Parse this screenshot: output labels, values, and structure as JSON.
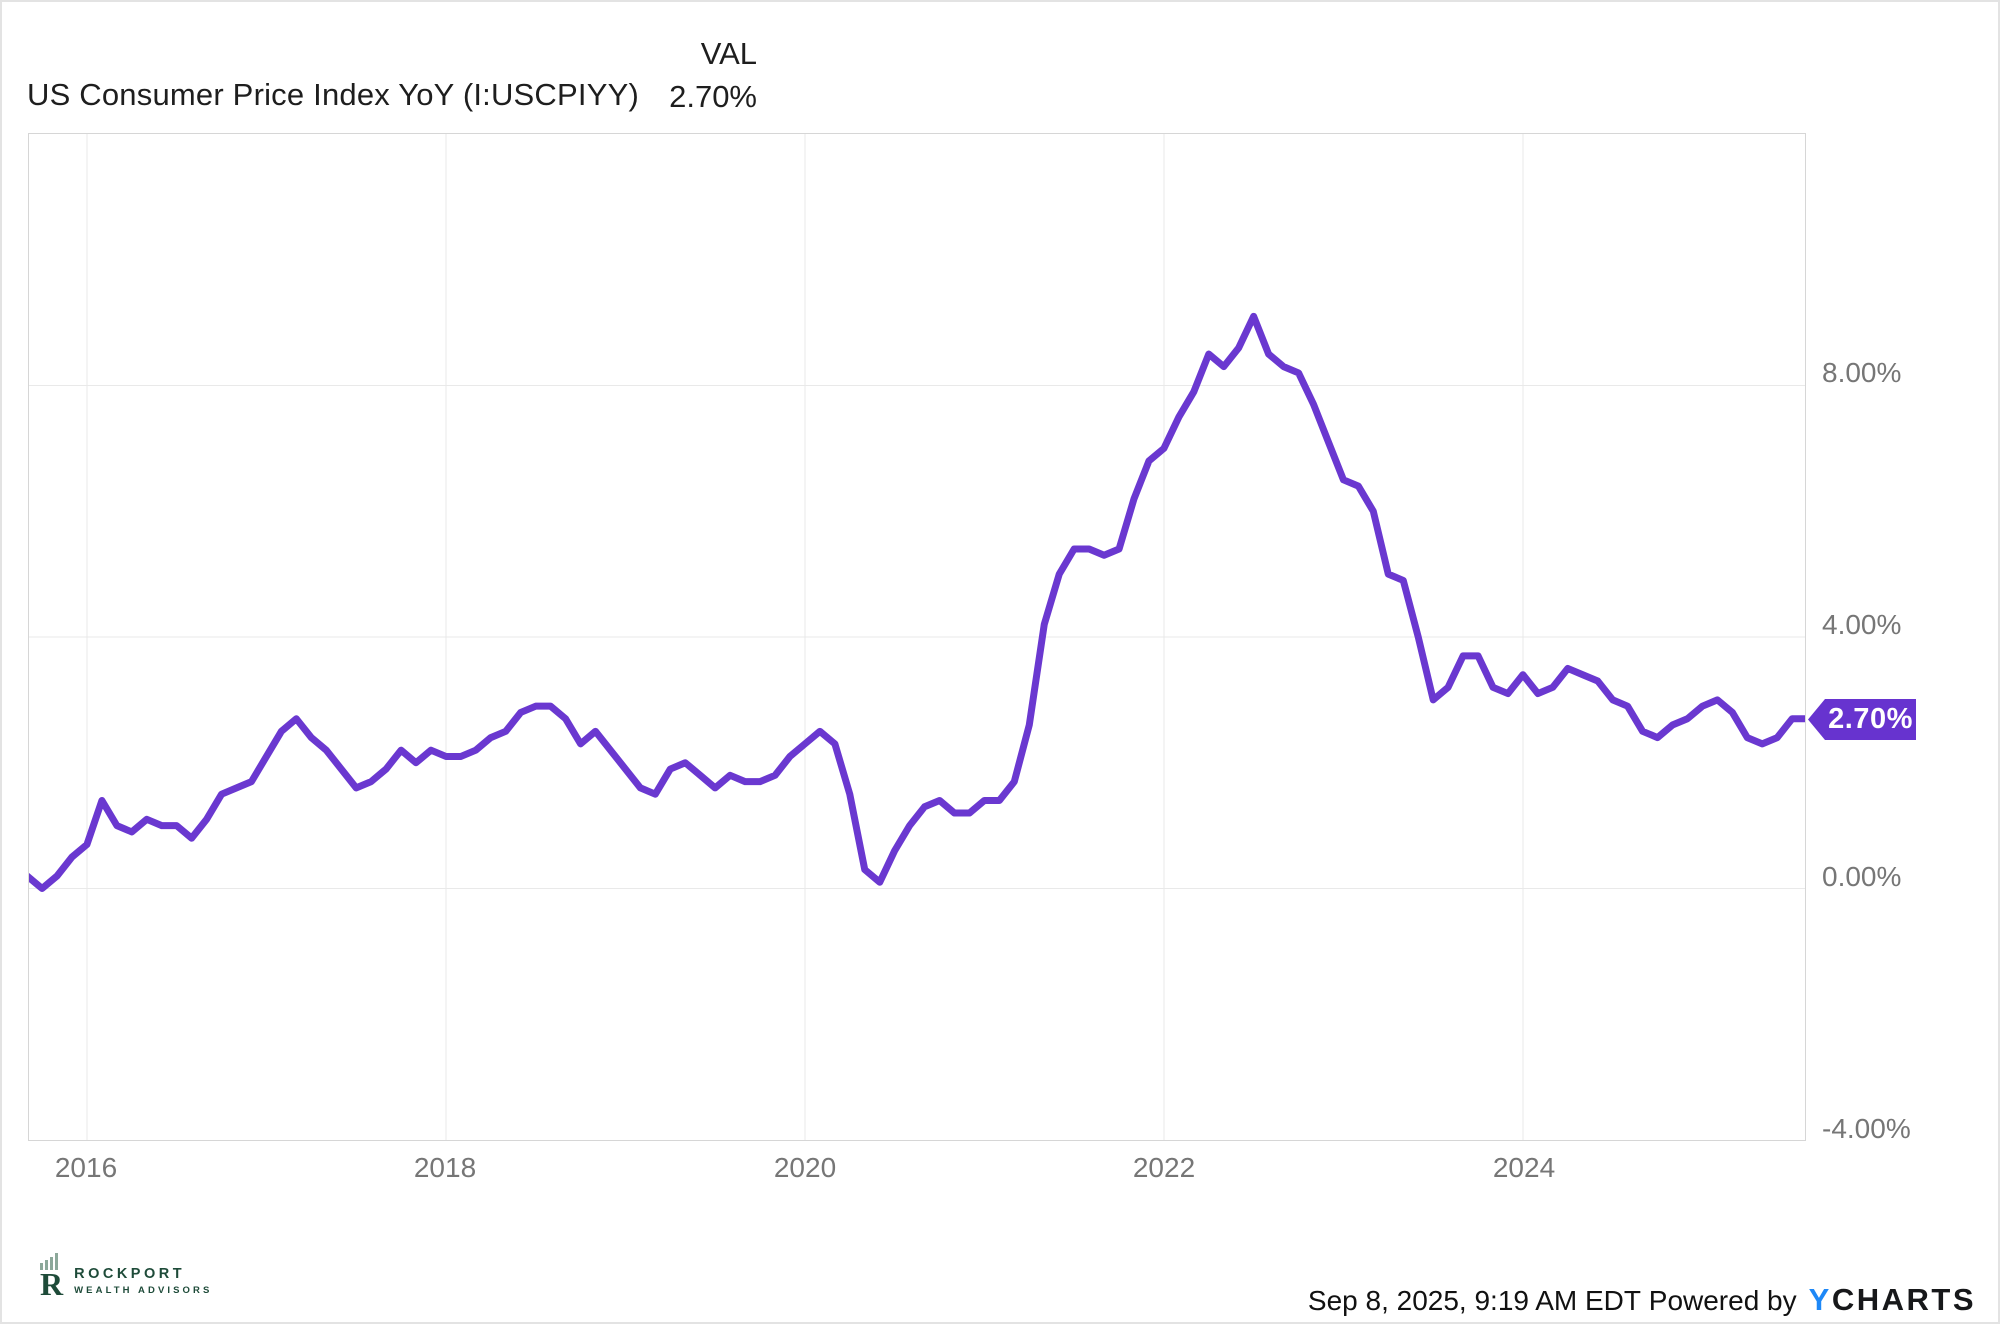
{
  "header": {
    "title": "US Consumer Price Index YoY (I:USCPIYY)",
    "val_label": "VAL",
    "val_value": "2.70%"
  },
  "badge": {
    "label": "2.70%"
  },
  "footer": {
    "timestamp": "Sep 8, 2025, 9:19 AM EDT",
    "powered_by": "Powered by",
    "ycharts_y": "Y",
    "ycharts_rest": "CHARTS",
    "logo_name": "ROCKPORT",
    "logo_sub": "WEALTH ADVISORS"
  },
  "colors": {
    "line": "#6A38D0",
    "badge": "#6733CF",
    "ycharts_blue": "#1E88F7",
    "rockport_green": "#1E4B39",
    "axis_label": "#767676",
    "gridline": "#e9e9e9",
    "plot_border": "#d6d6d6"
  },
  "chart_data": {
    "type": "line",
    "title": "US Consumer Price Index YoY (I:USCPIYY)",
    "series_name": "US Consumer Price Index YoY",
    "unit": "percent",
    "frequency": "monthly",
    "start_month": "2015-08",
    "end_month": "2025-07",
    "last_value_label": "2.70%",
    "grid": true,
    "legend_position": "none",
    "months": [
      "2015-08",
      "2015-09",
      "2015-10",
      "2015-11",
      "2015-12",
      "2016-01",
      "2016-02",
      "2016-03",
      "2016-04",
      "2016-05",
      "2016-06",
      "2016-07",
      "2016-08",
      "2016-09",
      "2016-10",
      "2016-11",
      "2016-12",
      "2017-01",
      "2017-02",
      "2017-03",
      "2017-04",
      "2017-05",
      "2017-06",
      "2017-07",
      "2017-08",
      "2017-09",
      "2017-10",
      "2017-11",
      "2017-12",
      "2018-01",
      "2018-02",
      "2018-03",
      "2018-04",
      "2018-05",
      "2018-06",
      "2018-07",
      "2018-08",
      "2018-09",
      "2018-10",
      "2018-11",
      "2018-12",
      "2019-01",
      "2019-02",
      "2019-03",
      "2019-04",
      "2019-05",
      "2019-06",
      "2019-07",
      "2019-08",
      "2019-09",
      "2019-10",
      "2019-11",
      "2019-12",
      "2020-01",
      "2020-02",
      "2020-03",
      "2020-04",
      "2020-05",
      "2020-06",
      "2020-07",
      "2020-08",
      "2020-09",
      "2020-10",
      "2020-11",
      "2020-12",
      "2021-01",
      "2021-02",
      "2021-03",
      "2021-04",
      "2021-05",
      "2021-06",
      "2021-07",
      "2021-08",
      "2021-09",
      "2021-10",
      "2021-11",
      "2021-12",
      "2022-01",
      "2022-02",
      "2022-03",
      "2022-04",
      "2022-05",
      "2022-06",
      "2022-07",
      "2022-08",
      "2022-09",
      "2022-10",
      "2022-11",
      "2022-12",
      "2023-01",
      "2023-02",
      "2023-03",
      "2023-04",
      "2023-05",
      "2023-06",
      "2023-07",
      "2023-08",
      "2023-09",
      "2023-10",
      "2023-11",
      "2023-12",
      "2024-01",
      "2024-02",
      "2024-03",
      "2024-04",
      "2024-05",
      "2024-06",
      "2024-07",
      "2024-08",
      "2024-09",
      "2024-10",
      "2024-11",
      "2024-12",
      "2025-01",
      "2025-02",
      "2025-03",
      "2025-04",
      "2025-05",
      "2025-06",
      "2025-07"
    ],
    "values": [
      0.2,
      0.0,
      0.2,
      0.5,
      0.7,
      1.4,
      1.0,
      0.9,
      1.1,
      1.0,
      1.0,
      0.8,
      1.1,
      1.5,
      1.6,
      1.7,
      2.1,
      2.5,
      2.7,
      2.4,
      2.2,
      1.9,
      1.6,
      1.7,
      1.9,
      2.2,
      2.0,
      2.2,
      2.1,
      2.1,
      2.2,
      2.4,
      2.5,
      2.8,
      2.9,
      2.9,
      2.7,
      2.3,
      2.5,
      2.2,
      1.9,
      1.6,
      1.5,
      1.9,
      2.0,
      1.8,
      1.6,
      1.8,
      1.7,
      1.7,
      1.8,
      2.1,
      2.3,
      2.5,
      2.3,
      1.5,
      0.3,
      0.1,
      0.6,
      1.0,
      1.3,
      1.4,
      1.2,
      1.2,
      1.4,
      1.4,
      1.7,
      2.6,
      4.2,
      5.0,
      5.4,
      5.4,
      5.3,
      5.4,
      6.2,
      6.8,
      7.0,
      7.5,
      7.9,
      8.5,
      8.3,
      8.6,
      9.1,
      8.5,
      8.3,
      8.2,
      7.7,
      7.1,
      6.5,
      6.4,
      6.0,
      5.0,
      4.9,
      4.0,
      3.0,
      3.2,
      3.7,
      3.7,
      3.2,
      3.1,
      3.4,
      3.1,
      3.2,
      3.5,
      3.4,
      3.3,
      3.0,
      2.9,
      2.5,
      2.4,
      2.6,
      2.7,
      2.9,
      3.0,
      2.8,
      2.4,
      2.3,
      2.4,
      2.7,
      2.7
    ],
    "x_axis": {
      "tick_labels": [
        "2016",
        "2018",
        "2020",
        "2022",
        "2024"
      ]
    },
    "y_axis": {
      "tick_labels": [
        "8.00%",
        "4.00%",
        "0.00%",
        "-4.00%"
      ],
      "tick_values": [
        8,
        4,
        0,
        -4
      ],
      "range": [
        -4,
        12
      ],
      "gridline_step": 4
    }
  }
}
